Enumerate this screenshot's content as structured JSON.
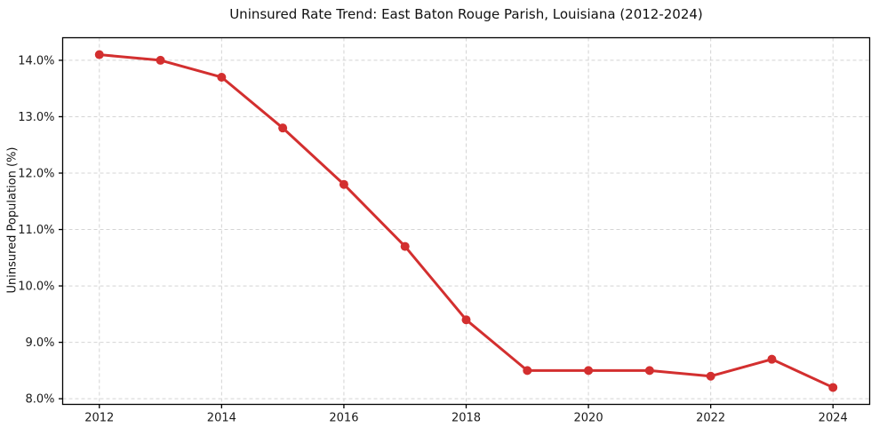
{
  "chart_data": {
    "type": "line",
    "title": "Uninsured Rate Trend: East Baton Rouge Parish, Louisiana (2012-2024)",
    "xlabel": "",
    "ylabel": "Uninsured Population (%)",
    "x": [
      2012,
      2013,
      2014,
      2015,
      2016,
      2017,
      2018,
      2019,
      2020,
      2021,
      2022,
      2023,
      2024
    ],
    "values": [
      14.1,
      14.0,
      13.7,
      12.8,
      11.8,
      10.7,
      9.4,
      8.5,
      8.5,
      8.5,
      8.4,
      8.7,
      8.2
    ],
    "xlim": [
      2011.4,
      2024.6
    ],
    "ylim": [
      7.9,
      14.4
    ],
    "x_ticks": [
      {
        "v": 2012,
        "label": "2012"
      },
      {
        "v": 2014,
        "label": "2014"
      },
      {
        "v": 2016,
        "label": "2016"
      },
      {
        "v": 2018,
        "label": "2018"
      },
      {
        "v": 2020,
        "label": "2020"
      },
      {
        "v": 2022,
        "label": "2022"
      },
      {
        "v": 2024,
        "label": "2024"
      }
    ],
    "y_ticks": [
      {
        "v": 8.0,
        "label": "8.0%"
      },
      {
        "v": 9.0,
        "label": "9.0%"
      },
      {
        "v": 10.0,
        "label": "10.0%"
      },
      {
        "v": 11.0,
        "label": "11.0%"
      },
      {
        "v": 12.0,
        "label": "12.0%"
      },
      {
        "v": 13.0,
        "label": "13.0%"
      },
      {
        "v": 14.0,
        "label": "14.0%"
      }
    ],
    "grid": true,
    "legend": "none",
    "line_color": "#d32f2f",
    "grid_color": "#d4d4d4",
    "spine_color": "#000000",
    "tick_text_color": "#1a1a1a",
    "marker": "circle"
  }
}
